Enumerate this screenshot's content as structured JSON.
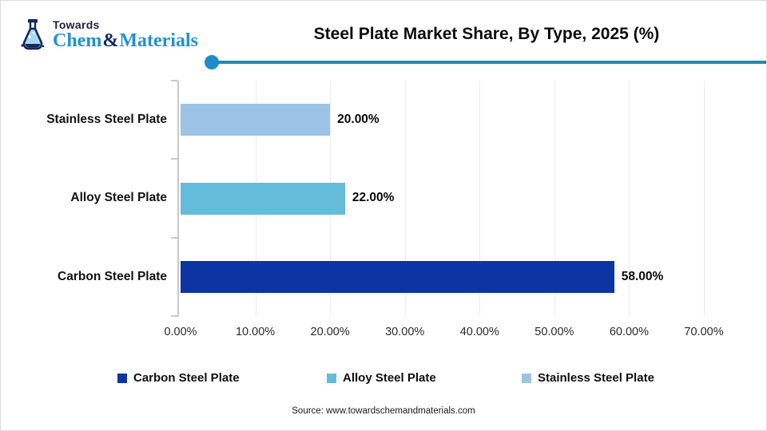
{
  "logo": {
    "towards": "Towards",
    "chem": "Chem",
    "ampersand": "&",
    "materials": "Materials"
  },
  "chart_data": {
    "type": "bar",
    "orientation": "horizontal",
    "title": "Steel Plate Market Share, By Type, 2025 (%)",
    "categories": [
      "Stainless Steel Plate",
      "Alloy Steel Plate",
      "Carbon Steel Plate"
    ],
    "values": [
      20,
      22,
      58
    ],
    "value_labels": [
      "20.00%",
      "22.00%",
      "58.00%"
    ],
    "bar_colors": [
      "#9dc3e6",
      "#63bcda",
      "#0c35a3"
    ],
    "xlim": [
      0,
      70
    ],
    "x_ticks": [
      "0.00%",
      "10.00%",
      "20.00%",
      "30.00%",
      "40.00%",
      "50.00%",
      "60.00%",
      "70.00%"
    ],
    "grid": true,
    "legend_position": "bottom",
    "legend": [
      {
        "label": "Carbon Steel Plate",
        "color": "#0c35a3"
      },
      {
        "label": "Alloy Steel Plate",
        "color": "#63bcda"
      },
      {
        "label": "Stainless Steel Plate",
        "color": "#9dc3e6"
      }
    ]
  },
  "colors": {
    "accent_rule": "#1d8ea9",
    "accent_dot": "#1e8cc8",
    "axis": "#c9c9c9",
    "gridline": "#ececec",
    "logo_blue": "#1e93d2",
    "logo_navy": "#15265d"
  },
  "footer": {
    "source": "Source: www.towardschemandmaterials.com"
  }
}
